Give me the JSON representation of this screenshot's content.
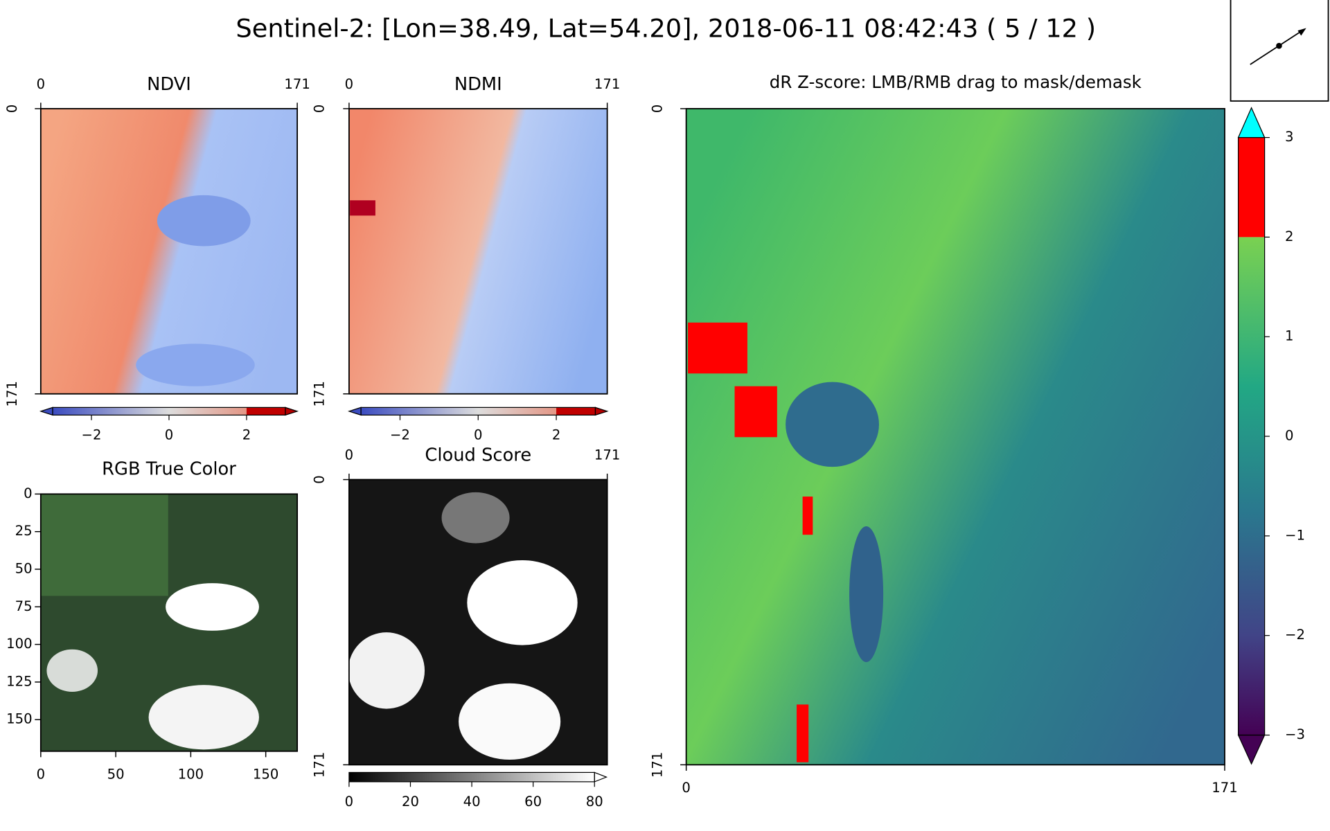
{
  "figure_title": "Sentinel-2: [Lon=38.49, Lat=54.20], 2018-06-11 08:42:43 ( 5 / 12 )",
  "chart_data": [
    {
      "type": "image",
      "title": "NDVI",
      "xlim": [
        0,
        171
      ],
      "ylim": [
        0,
        171
      ],
      "xticks": [
        0,
        171
      ],
      "yticks": [
        0,
        171
      ],
      "colorbar": {
        "clim": [
          -3,
          3
        ],
        "ticks": [
          {
            "value": -2,
            "label": "−2"
          },
          0,
          2
        ]
      }
    },
    {
      "type": "image",
      "title": "NDMI",
      "xlim": [
        0,
        171
      ],
      "ylim": [
        0,
        171
      ],
      "xticks": [
        0,
        171
      ],
      "yticks": [
        0,
        171
      ],
      "colorbar": {
        "clim": [
          -3,
          3
        ],
        "ticks": [
          {
            "value": -2,
            "label": "−2"
          },
          0,
          2
        ]
      }
    },
    {
      "type": "image",
      "title": "RGB True Color",
      "xlim": [
        0,
        171
      ],
      "ylim": [
        0,
        171
      ],
      "xticks": [
        0,
        50,
        100,
        150
      ],
      "yticks": [
        0,
        25,
        50,
        75,
        100,
        125,
        150
      ]
    },
    {
      "type": "image",
      "title": "Cloud Score",
      "xlim": [
        0,
        171
      ],
      "ylim": [
        0,
        171
      ],
      "xticks": [
        0,
        171
      ],
      "yticks": [
        0,
        171
      ],
      "colorbar": {
        "clim": [
          0,
          80
        ],
        "ticks": [
          0,
          20,
          40,
          60,
          80
        ]
      }
    },
    {
      "type": "image",
      "title": "dR Z-score: LMB/RMB drag to mask/demask",
      "xlim": [
        0,
        171
      ],
      "ylim": [
        0,
        171
      ],
      "xticks": [
        0,
        171
      ],
      "yticks": [
        0,
        171
      ],
      "colorbar": {
        "clim": [
          -3,
          3
        ],
        "ticks": [
          3,
          2,
          1,
          0,
          {
            "value": -1,
            "label": "−1"
          },
          {
            "value": -2,
            "label": "−2"
          },
          {
            "value": -3,
            "label": "−3"
          }
        ]
      }
    }
  ]
}
